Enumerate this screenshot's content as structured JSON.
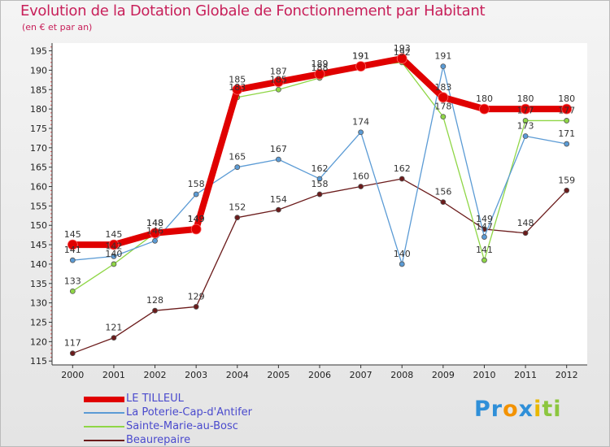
{
  "chart_data": {
    "type": "line",
    "title": "Evolution de la Dotation Globale de Fonctionnement par Habitant",
    "subtitle": "(en € et par an)",
    "x": [
      "2000",
      "2001",
      "2002",
      "2003",
      "2004",
      "2005",
      "2006",
      "2007",
      "2008",
      "2009",
      "2010",
      "2011",
      "2012"
    ],
    "ylim": [
      114,
      197
    ],
    "yticks": [
      115,
      120,
      125,
      130,
      135,
      140,
      145,
      150,
      155,
      160,
      165,
      170,
      175,
      180,
      185,
      190,
      195
    ],
    "series": [
      {
        "name": "LE TILLEUL",
        "color": "#e00000",
        "values": [
          145,
          145,
          148,
          149,
          185,
          187,
          189,
          191,
          193,
          183,
          180,
          180,
          180
        ]
      },
      {
        "name": "La Poterie-Cap-d'Antifer",
        "color": "#5b9bd5",
        "values": [
          141,
          142,
          146,
          158,
          165,
          167,
          162,
          174,
          140,
          191,
          147,
          173,
          171
        ]
      },
      {
        "name": "Sainte-Marie-au-Bosc",
        "color": "#8fd646",
        "values": [
          133,
          140,
          148,
          149,
          183,
          185,
          188,
          191,
          192,
          178,
          141,
          177,
          177
        ]
      },
      {
        "name": "Beaurepaire",
        "color": "#6b1b1b",
        "values": [
          117,
          121,
          128,
          129,
          152,
          154,
          158,
          160,
          162,
          156,
          149,
          148,
          159
        ]
      }
    ]
  },
  "logo": {
    "parts": [
      "Pr",
      "o",
      "x",
      "i",
      "ti"
    ]
  }
}
